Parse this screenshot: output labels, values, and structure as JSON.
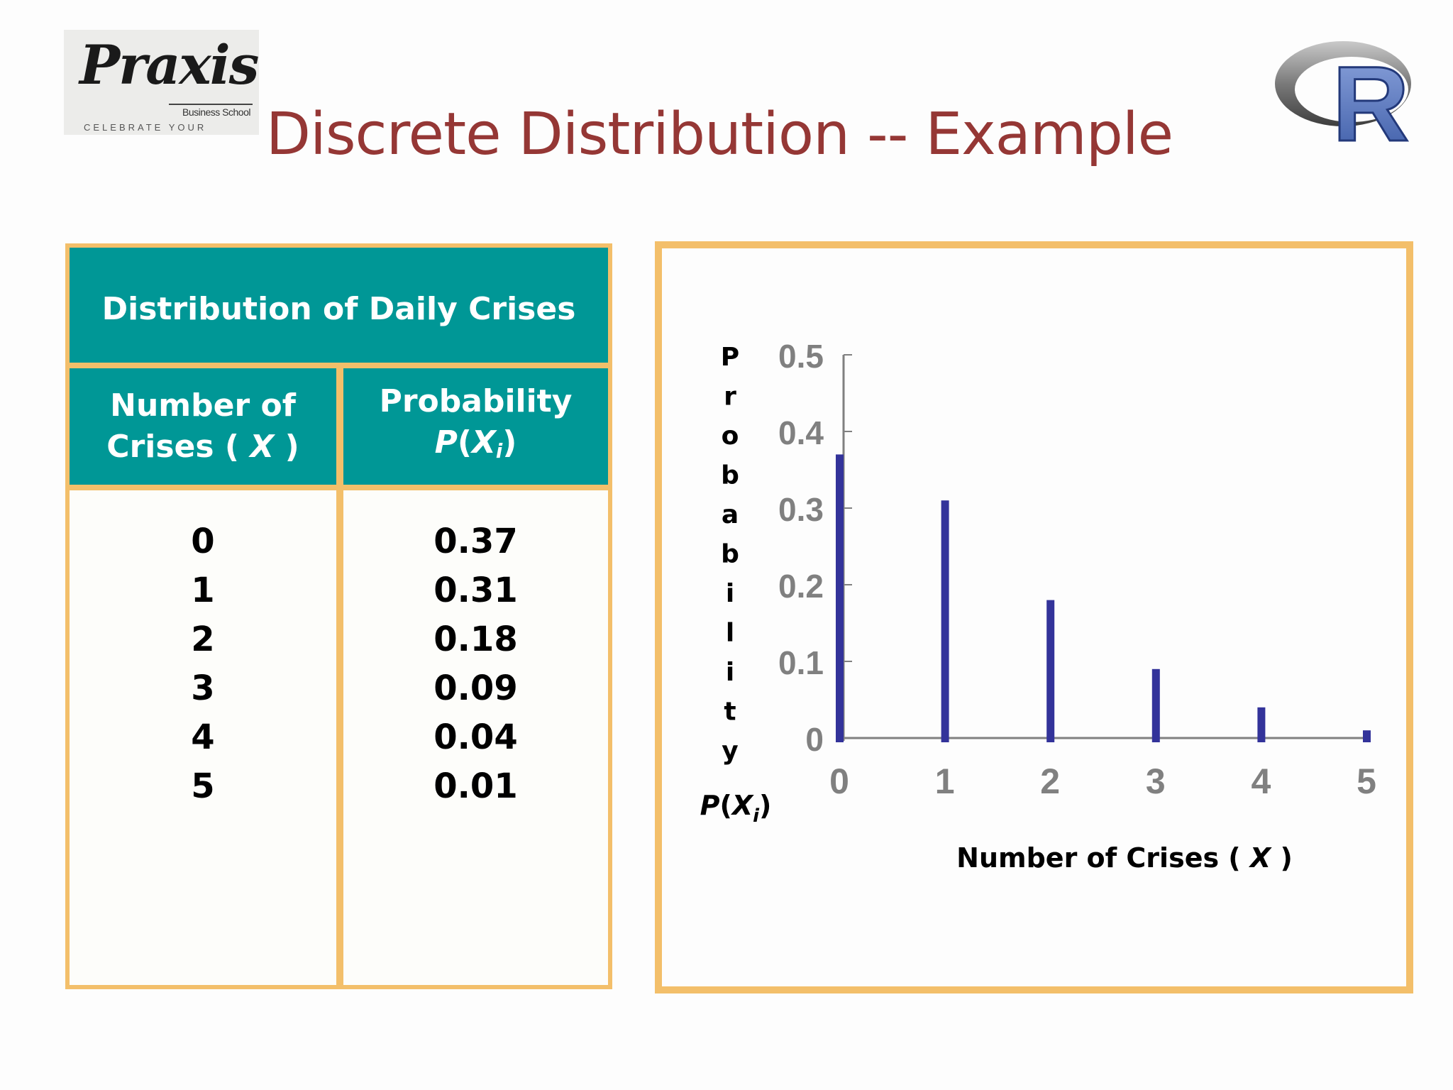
{
  "logo": {
    "name": "Praxis",
    "subtitle": "Business School",
    "tagline": "CELEBRATE YOUR WORTH"
  },
  "r_logo": {
    "letter": "R",
    "ring_color": "#7a7a7a",
    "letter_color": "#4b6cb8"
  },
  "title": "Discrete Distribution -- Example",
  "colors": {
    "title": "#953735",
    "teal": "#009796",
    "border": "#f3bf6a",
    "bar": "#33339a",
    "tick": "#808080"
  },
  "table": {
    "header": "Distribution of Daily Crises",
    "col1_line1": "Number of",
    "col1_line2_prefix": "Crises ( ",
    "col1_var": "X",
    "col1_line2_suffix": " )",
    "col2_line1": "Probability",
    "col2_p": "P",
    "col2_open": "(",
    "col2_x": "X",
    "col2_sub": "i",
    "col2_close": ")",
    "rows": [
      {
        "x": "0",
        "p": "0.37"
      },
      {
        "x": "1",
        "p": "0.31"
      },
      {
        "x": "2",
        "p": "0.18"
      },
      {
        "x": "3",
        "p": "0.09"
      },
      {
        "x": "4",
        "p": "0.04"
      },
      {
        "x": "5",
        "p": "0.01"
      }
    ]
  },
  "chart_data": {
    "type": "bar",
    "categories": [
      "0",
      "1",
      "2",
      "3",
      "4",
      "5"
    ],
    "values": [
      0.37,
      0.31,
      0.18,
      0.09,
      0.04,
      0.01
    ],
    "ylim": [
      0,
      0.5
    ],
    "yticks": [
      "0",
      "0.1",
      "0.2",
      "0.3",
      "0.4",
      "0.5"
    ],
    "ytick_values": [
      0,
      0.1,
      0.2,
      0.3,
      0.4,
      0.5
    ],
    "ylabel_letters": [
      "P",
      "r",
      "o",
      "b",
      "a",
      "b",
      "i",
      "l",
      "i",
      "t",
      "y"
    ],
    "ylabel_sub": "P(Xi)",
    "xlabel_prefix": "Number of Crises ( ",
    "xlabel_var": "X",
    "xlabel_suffix": " )",
    "grid": false,
    "legend": "none"
  }
}
